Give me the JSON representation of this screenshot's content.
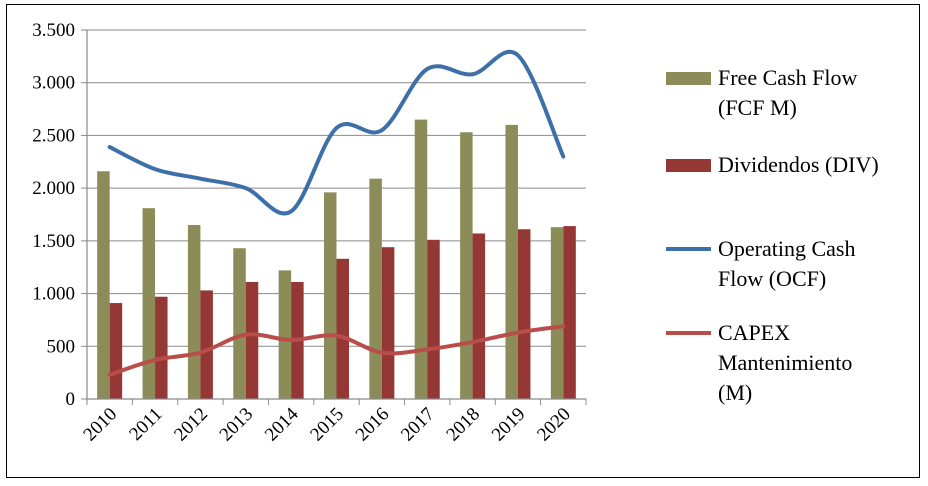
{
  "chart_data": {
    "type": "bar",
    "categories": [
      "2010",
      "2011",
      "2012",
      "2013",
      "2014",
      "2015",
      "2016",
      "2017",
      "2018",
      "2019",
      "2020"
    ],
    "ylim": [
      0,
      3500
    ],
    "y_ticks": [
      0,
      500,
      1000,
      1500,
      2000,
      2500,
      3000,
      3500
    ],
    "y_tick_labels": [
      "0",
      "500",
      "1.000",
      "1.500",
      "2.000",
      "2.500",
      "3.000",
      "3.500"
    ],
    "grid": true,
    "legend_position": "right",
    "series": [
      {
        "name": "Free Cash Flow (FCF M)",
        "legend_lines": [
          "Free Cash Flow",
          "(FCF M)"
        ],
        "kind": "bar",
        "color": "#8b8c58",
        "values": [
          2160,
          1810,
          1650,
          1430,
          1220,
          1960,
          2090,
          2650,
          2530,
          2600,
          1630
        ]
      },
      {
        "name": "Dividendos (DIV)",
        "legend_lines": [
          "Dividendos (DIV)"
        ],
        "kind": "bar",
        "color": "#953735",
        "values": [
          910,
          970,
          1030,
          1110,
          1110,
          1330,
          1440,
          1510,
          1570,
          1610,
          1640
        ]
      },
      {
        "name": "Operating Cash Flow (OCF)",
        "legend_lines": [
          "Operating Cash",
          "Flow (OCF)"
        ],
        "kind": "line",
        "color": "#3d6fa8",
        "values": [
          2390,
          2180,
          2090,
          2000,
          1780,
          2570,
          2550,
          3130,
          3080,
          3260,
          2300
        ]
      },
      {
        "name": "CAPEX Mantenimiento (M)",
        "legend_lines": [
          "CAPEX",
          "Mantenimiento",
          "(M)"
        ],
        "kind": "line",
        "color": "#b94d4a",
        "values": [
          230,
          370,
          440,
          610,
          560,
          600,
          440,
          470,
          540,
          630,
          690
        ]
      }
    ]
  }
}
